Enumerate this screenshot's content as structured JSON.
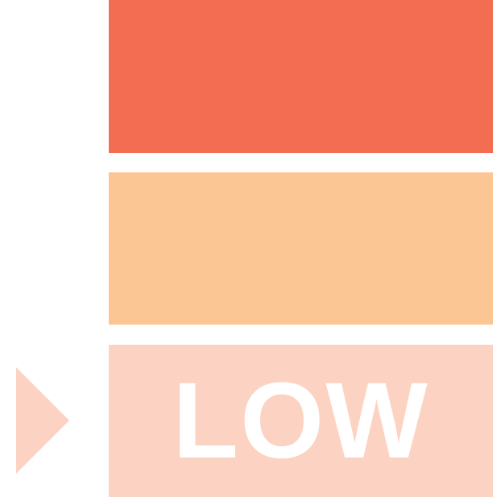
{
  "levels": [
    {
      "id": "high",
      "color": "#F26D52",
      "label": ""
    },
    {
      "id": "medium",
      "color": "#FCC594",
      "label": ""
    },
    {
      "id": "low",
      "color": "#FCD3C2",
      "label": "LOW"
    }
  ],
  "selected_level": "low",
  "indicator": {
    "icon": "triangle-right-icon",
    "color": "#FCD3C2"
  }
}
